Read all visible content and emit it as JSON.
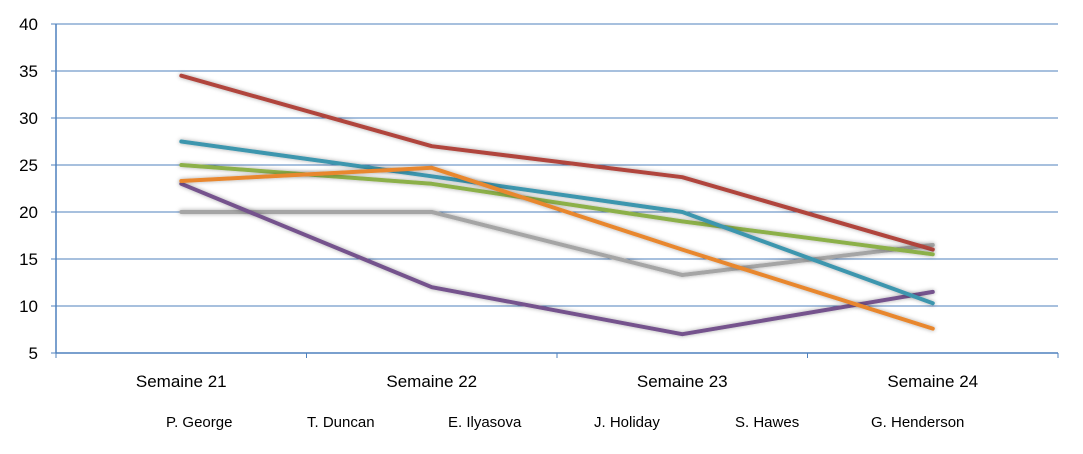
{
  "chart_data": {
    "type": "line",
    "title": "",
    "xlabel": "",
    "ylabel": "",
    "ylim": [
      5,
      40
    ],
    "yticks": [
      5,
      10,
      15,
      20,
      25,
      30,
      35,
      40
    ],
    "grid": true,
    "legend_position": "bottom",
    "categories": [
      "Semaine 21",
      "Semaine 22",
      "Semaine 23",
      "Semaine 24"
    ],
    "series": [
      {
        "name": "P. George",
        "color": "#A5A5A5",
        "values": [
          20,
          20,
          13.3,
          16.5
        ]
      },
      {
        "name": "T. Duncan",
        "color": "#B0443C",
        "values": [
          34.5,
          27,
          23.7,
          16
        ]
      },
      {
        "name": "E. Ilyasova",
        "color": "#8CB04A",
        "values": [
          25,
          23,
          19,
          15.5
        ]
      },
      {
        "name": "J. Holiday",
        "color": "#74528D",
        "values": [
          23,
          12,
          7,
          11.5
        ]
      },
      {
        "name": "S. Hawes",
        "color": "#3D96AE",
        "values": [
          27.5,
          23.8,
          20,
          10.3
        ]
      },
      {
        "name": "G. Henderson",
        "color": "#E8872F",
        "values": [
          23.3,
          24.7,
          16,
          7.6
        ]
      }
    ]
  }
}
